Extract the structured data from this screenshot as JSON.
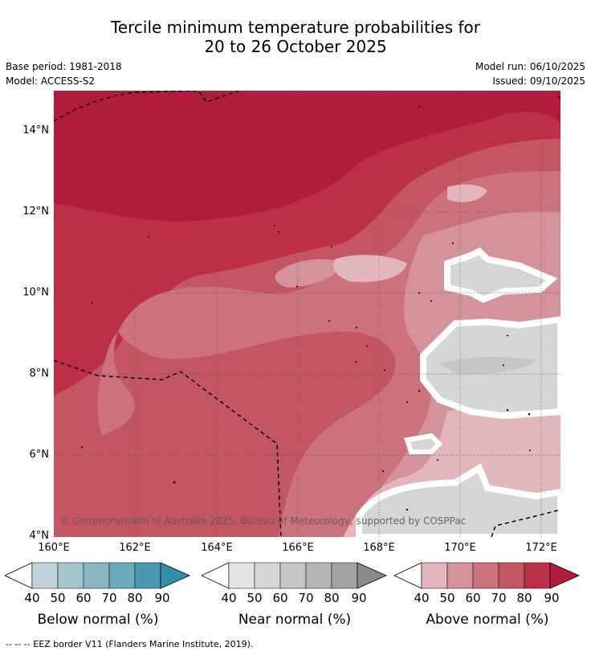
{
  "title_line1": "Tercile minimum temperature probabilities for",
  "title_line2": "20 to 26 October 2025",
  "meta": {
    "base_period": "Base period: 1981-2018",
    "model": "Model: ACCESS-S2",
    "model_run": "Model run: 06/10/2025",
    "issued": "Issued: 09/10/2025"
  },
  "lat_labels": [
    "14°N",
    "12°N",
    "10°N",
    "8°N",
    "6°N",
    "4°N"
  ],
  "lon_labels": [
    "160°E",
    "162°E",
    "164°E",
    "166°E",
    "168°E",
    "170°E",
    "172°E"
  ],
  "copyright": "© Commonwealth of Australia 2025, Bureau of Meteorology, supported by COSPPac",
  "legends": [
    {
      "caption": "Below normal (%)",
      "ticks": [
        "40",
        "50",
        "60",
        "70",
        "80",
        "90"
      ],
      "colors": [
        "#bfd3da",
        "#a4c7cd",
        "#88b6c2",
        "#6cabbc",
        "#4998b0",
        "#2e91a8"
      ]
    },
    {
      "caption": "Near normal (%)",
      "ticks": [
        "40",
        "50",
        "60",
        "70",
        "80",
        "90"
      ],
      "colors": [
        "#e5e5e5",
        "#d6d6d6",
        "#c6c6c6",
        "#b4b4b4",
        "#a2a2a2",
        "#8a8a8a"
      ]
    },
    {
      "caption": "Above normal (%)",
      "ticks": [
        "40",
        "50",
        "60",
        "70",
        "80",
        "90"
      ],
      "colors": [
        "#e2b6bb",
        "#d4929a",
        "#cc727d",
        "#c45563",
        "#bc2f47",
        "#b01c39"
      ]
    }
  ],
  "footnote": "-- -- -- EEZ border V11 (Flanders Marine Institute, 2019)."
}
